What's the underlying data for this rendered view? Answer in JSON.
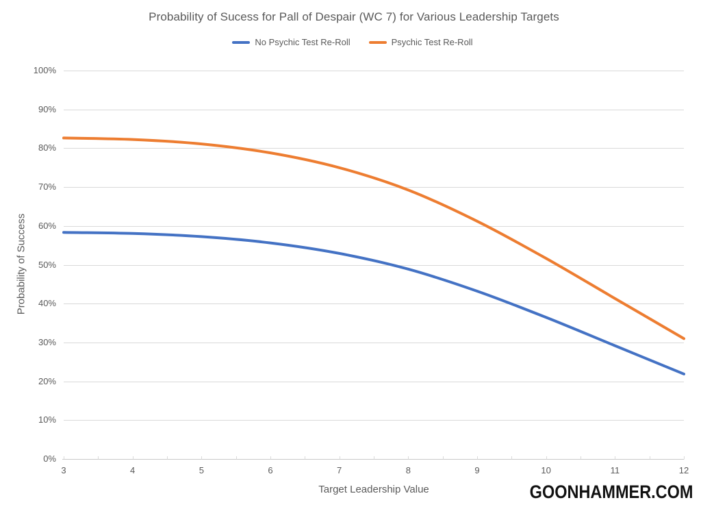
{
  "chart_data": {
    "type": "line",
    "title": "Probability of Sucess for Pall of Despair (WC 7) for Various Leadership Targets",
    "xlabel": "Target Leadership Value",
    "ylabel": "Probability of Success",
    "categories": [
      3,
      4,
      5,
      6,
      7,
      8,
      9,
      10,
      11,
      12
    ],
    "series": [
      {
        "name": "No Psychic Test Re-Roll",
        "color": "#4472C4",
        "values": [
          58.33,
          58.06,
          57.25,
          55.63,
          52.93,
          48.88,
          43.21,
          36.46,
          29.17,
          21.88
        ]
      },
      {
        "name": "Psychic Test Re-Roll",
        "color": "#ED7D31",
        "values": [
          82.64,
          82.26,
          81.11,
          78.81,
          74.99,
          69.25,
          61.21,
          51.65,
          41.32,
          30.99
        ]
      }
    ],
    "ylim": [
      0,
      100
    ],
    "ytick_labels": [
      "0%",
      "10%",
      "20%",
      "30%",
      "40%",
      "50%",
      "60%",
      "70%",
      "80%",
      "90%",
      "100%"
    ],
    "grid": "horizontal",
    "legend_position": "top",
    "smoothed_lines": true
  },
  "watermark": "GOONHAMMER.COM",
  "colors": {
    "background": "#FFFFFF",
    "gridline": "#D9D9D9",
    "axis_line": "#C9C9C9",
    "text": "#595959",
    "watermark_text": "#111111"
  }
}
